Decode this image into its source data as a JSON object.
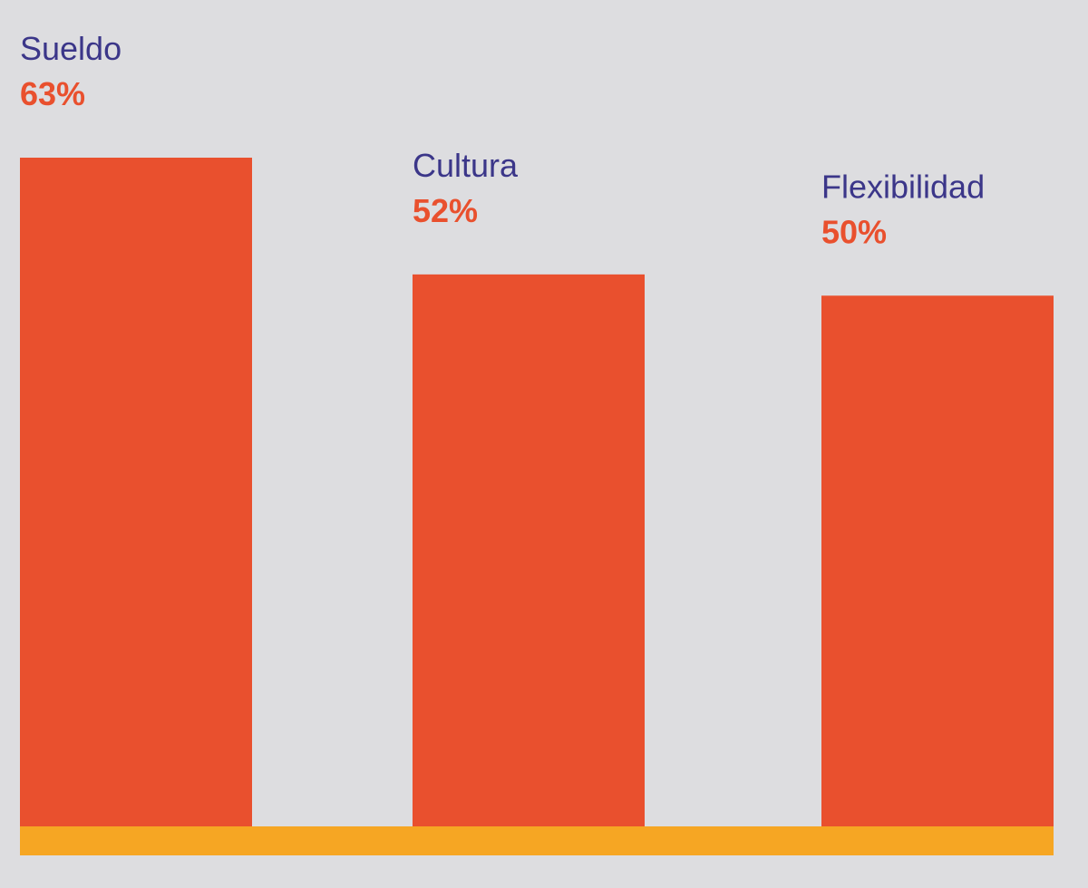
{
  "chart_data": {
    "type": "bar",
    "categories": [
      "Sueldo",
      "Cultura",
      "Flexibilidad"
    ],
    "values": [
      63,
      52,
      50
    ],
    "value_labels": [
      "63%",
      "52%",
      "50%"
    ],
    "unit": "%",
    "title": "",
    "xlabel": "",
    "ylabel": "",
    "ylim": [
      0,
      100
    ],
    "grid": false,
    "legend": "none"
  },
  "colors": {
    "background": "#dddde0",
    "bar": "#e9502e",
    "baseline": "#f6a623",
    "category_text": "#3b3689",
    "value_text": "#e9502e"
  }
}
